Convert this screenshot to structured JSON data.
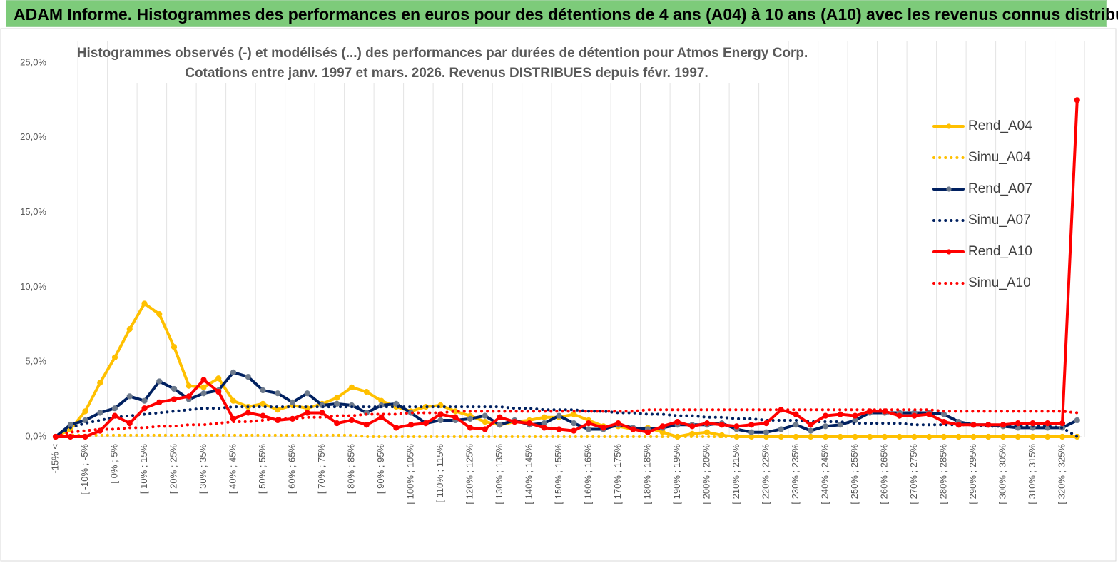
{
  "header": {
    "title": "ADAM Informe. Histogrammes des performances en euros pour des détentions de 4 ans (A04) à 10 ans (A10) avec les revenus connus distribués"
  },
  "chart_data": {
    "type": "line",
    "title": "Histogrammes observés (-) et modélisés (...) des performances par durées de détention pour Atmos Energy Corp.",
    "subtitle": "Cotations entre janv. 1997 et mars. 2026. Revenus DISTRIBUES depuis févr. 1997.",
    "categories": [
      "-15% <",
      null,
      "[ -10% ; -5%",
      null,
      "[ 0% ; 5%",
      null,
      "[ 10% ; 15%",
      null,
      "[ 20% ; 25%",
      null,
      "[ 30% ; 35%",
      null,
      "[ 40% ; 45%",
      null,
      "[ 50% ; 55%",
      null,
      "[ 60% ; 65%",
      null,
      "[ 70% ; 75%",
      null,
      "[ 80% ; 85%",
      null,
      "[ 90% ; 95%",
      null,
      "[ 100% ; 105%",
      null,
      "[ 110% ; 115%",
      null,
      "[ 120% ; 125%",
      null,
      "[ 130% ; 135%",
      null,
      "[ 140% ; 145%",
      null,
      "[ 150% ; 155%",
      null,
      "[ 160% ; 165%",
      null,
      "[ 170% ; 175%",
      null,
      "[ 180% ; 185%",
      null,
      "[ 190% ; 195%",
      null,
      "[ 200% ; 205%",
      null,
      "[ 210% ; 215%",
      null,
      "[ 220% ; 225%",
      null,
      "[ 230% ; 235%",
      null,
      "[ 240% ; 245%",
      null,
      "[ 250% ; 255%",
      null,
      "[ 260% ; 265%",
      null,
      "[ 270% ; 275%",
      null,
      "[ 280% ; 285%",
      null,
      "[ 290% ; 295%",
      null,
      "[ 300% ; 305%",
      null,
      "[ 310% ; 315%",
      null,
      "[ 320% ; 325%",
      null
    ],
    "series": [
      {
        "name": "Rend_A04",
        "color": "#ffc000",
        "line_style": "solid",
        "marker_color": "#ffc000",
        "values": [
          0,
          0.5,
          1.7,
          3.6,
          5.3,
          7.2,
          8.9,
          8.2,
          6.0,
          3.4,
          3.3,
          3.9,
          2.4,
          2.0,
          2.2,
          1.8,
          2.1,
          1.9,
          2.2,
          2.6,
          3.3,
          3.0,
          2.4,
          2.0,
          1.7,
          2.0,
          2.1,
          1.7,
          1.4,
          1.0,
          0.8,
          1.0,
          1.1,
          1.3,
          1.3,
          1.5,
          1.1,
          0.7,
          0.7,
          0.5,
          0.6,
          0.3,
          0.0,
          0.2,
          0.3,
          0.1,
          0,
          0,
          0,
          0,
          0,
          0,
          0,
          0,
          0,
          0,
          0,
          0,
          0,
          0,
          0,
          0,
          0,
          0,
          0,
          0,
          0,
          0,
          0,
          0
        ]
      },
      {
        "name": "Simu_A04",
        "color": "#ffc000",
        "line_style": "dotted",
        "values": [
          0,
          0.1,
          0.1,
          0.1,
          0.1,
          0.1,
          0.1,
          0.1,
          0.1,
          0.1,
          0.1,
          0.1,
          0.1,
          0.1,
          0.1,
          0.1,
          0.1,
          0.1,
          0.1,
          0.1,
          0.1,
          0,
          0,
          0,
          0,
          0,
          0,
          0,
          0,
          0,
          0,
          0,
          0,
          0,
          0,
          0,
          0,
          0,
          0,
          0,
          0,
          0,
          0,
          0,
          0,
          0,
          0,
          0,
          0,
          0,
          0,
          0,
          0,
          0,
          0,
          0,
          0,
          0,
          0,
          0,
          0,
          0,
          0,
          0,
          0,
          0,
          0,
          0,
          0,
          0
        ]
      },
      {
        "name": "Rend_A07",
        "color": "#002060",
        "line_style": "solid",
        "marker_color": "#6d7a8c",
        "values": [
          0,
          0.8,
          1.1,
          1.6,
          1.9,
          2.7,
          2.4,
          3.7,
          3.2,
          2.5,
          2.9,
          3.1,
          4.3,
          4.0,
          3.1,
          2.9,
          2.3,
          2.9,
          2.1,
          2.2,
          2.1,
          1.6,
          2.1,
          2.2,
          1.6,
          0.9,
          1.1,
          1.1,
          1.2,
          1.4,
          0.8,
          1.1,
          0.8,
          0.9,
          1.4,
          0.9,
          0.5,
          0.5,
          0.8,
          0.6,
          0.5,
          0.6,
          0.8,
          0.8,
          0.8,
          0.9,
          0.5,
          0.3,
          0.3,
          0.5,
          0.8,
          0.4,
          0.7,
          0.8,
          1.1,
          1.6,
          1.6,
          1.6,
          1.6,
          1.6,
          1.5,
          1.0,
          0.8,
          0.8,
          0.7,
          0.6,
          0.6,
          0.6,
          0.6,
          1.1
        ]
      },
      {
        "name": "Simu_A07",
        "color": "#002060",
        "line_style": "dotted",
        "values": [
          0,
          0.6,
          0.9,
          1.1,
          1.3,
          1.4,
          1.5,
          1.6,
          1.7,
          1.8,
          1.9,
          1.9,
          2.0,
          2.0,
          2.0,
          2.0,
          2.0,
          2.0,
          2.0,
          2.0,
          2.0,
          2.0,
          2.0,
          2.0,
          2.0,
          2.0,
          2.0,
          2.0,
          2.0,
          2.0,
          2.0,
          1.9,
          1.9,
          1.8,
          1.8,
          1.8,
          1.7,
          1.7,
          1.6,
          1.6,
          1.5,
          1.5,
          1.4,
          1.4,
          1.3,
          1.3,
          1.2,
          1.2,
          1.1,
          1.1,
          1.1,
          1.0,
          1.0,
          1.0,
          0.9,
          0.9,
          0.9,
          0.9,
          0.8,
          0.8,
          0.8,
          0.8,
          0.8,
          0.7,
          0.7,
          0.7,
          0.7,
          0.7,
          0.6,
          0
        ]
      },
      {
        "name": "Rend_A10",
        "color": "#ff0000",
        "line_style": "solid",
        "marker_color": "#ff0000",
        "values": [
          0,
          0,
          0,
          0.4,
          1.4,
          0.9,
          1.9,
          2.3,
          2.5,
          2.7,
          3.8,
          3.0,
          1.2,
          1.6,
          1.4,
          1.1,
          1.2,
          1.6,
          1.6,
          0.9,
          1.1,
          0.8,
          1.3,
          0.6,
          0.8,
          0.9,
          1.5,
          1.3,
          0.6,
          0.5,
          1.3,
          1.0,
          0.9,
          0.6,
          0.5,
          0.4,
          0.9,
          0.6,
          0.9,
          0.5,
          0.3,
          0.7,
          1.0,
          0.7,
          0.9,
          0.8,
          0.7,
          0.8,
          0.9,
          1.8,
          1.5,
          0.8,
          1.4,
          1.5,
          1.4,
          1.7,
          1.7,
          1.4,
          1.4,
          1.5,
          1.0,
          0.8,
          0.8,
          0.8,
          0.8,
          0.9,
          0.9,
          0.9,
          0.9,
          22.5
        ]
      },
      {
        "name": "Simu_A10",
        "color": "#ff0000",
        "line_style": "dotted",
        "values": [
          0,
          0.3,
          0.4,
          0.5,
          0.5,
          0.6,
          0.6,
          0.7,
          0.7,
          0.8,
          0.8,
          0.9,
          1.0,
          1.0,
          1.1,
          1.2,
          1.2,
          1.3,
          1.3,
          1.4,
          1.4,
          1.5,
          1.5,
          1.5,
          1.6,
          1.6,
          1.6,
          1.7,
          1.7,
          1.7,
          1.7,
          1.7,
          1.7,
          1.7,
          1.7,
          1.7,
          1.7,
          1.7,
          1.7,
          1.7,
          1.8,
          1.8,
          1.8,
          1.8,
          1.8,
          1.8,
          1.8,
          1.8,
          1.8,
          1.8,
          1.8,
          1.8,
          1.8,
          1.8,
          1.8,
          1.8,
          1.8,
          1.8,
          1.8,
          1.8,
          1.7,
          1.7,
          1.7,
          1.7,
          1.7,
          1.7,
          1.7,
          1.7,
          1.7,
          1.6
        ]
      }
    ],
    "ylim": [
      0,
      25
    ],
    "yticks": [
      {
        "value": 0,
        "label": "0,0%"
      },
      {
        "value": 5,
        "label": "5,0%"
      },
      {
        "value": 10,
        "label": "10,0%"
      },
      {
        "value": 15,
        "label": "15,0%"
      },
      {
        "value": 20,
        "label": "20,0%"
      },
      {
        "value": 25,
        "label": "25,0%"
      }
    ],
    "legend": "right"
  }
}
